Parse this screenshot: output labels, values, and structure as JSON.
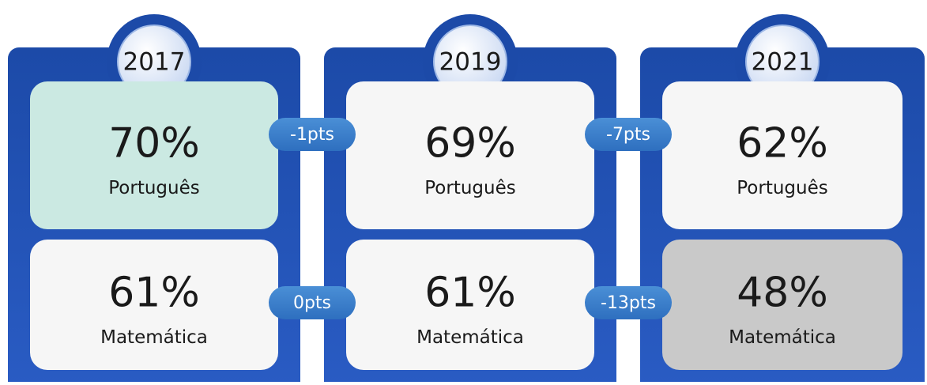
{
  "columns": [
    {
      "year": "2017",
      "cells": [
        {
          "value": "70%",
          "subject": "Português",
          "color": "#cbe9e2"
        },
        {
          "value": "61%",
          "subject": "Matemática",
          "color": "#f6f6f6"
        }
      ]
    },
    {
      "year": "2019",
      "cells": [
        {
          "value": "69%",
          "subject": "Português",
          "color": "#f6f6f6"
        },
        {
          "value": "61%",
          "subject": "Matemática",
          "color": "#f6f6f6"
        }
      ]
    },
    {
      "year": "2021",
      "cells": [
        {
          "value": "62%",
          "subject": "Português",
          "color": "#f6f6f6"
        },
        {
          "value": "48%",
          "subject": "Matemática",
          "color": "#c9c9c9"
        }
      ]
    }
  ],
  "changes": [
    [
      "-1pts",
      "0pts"
    ],
    [
      "-7pts",
      "-13pts"
    ]
  ]
}
